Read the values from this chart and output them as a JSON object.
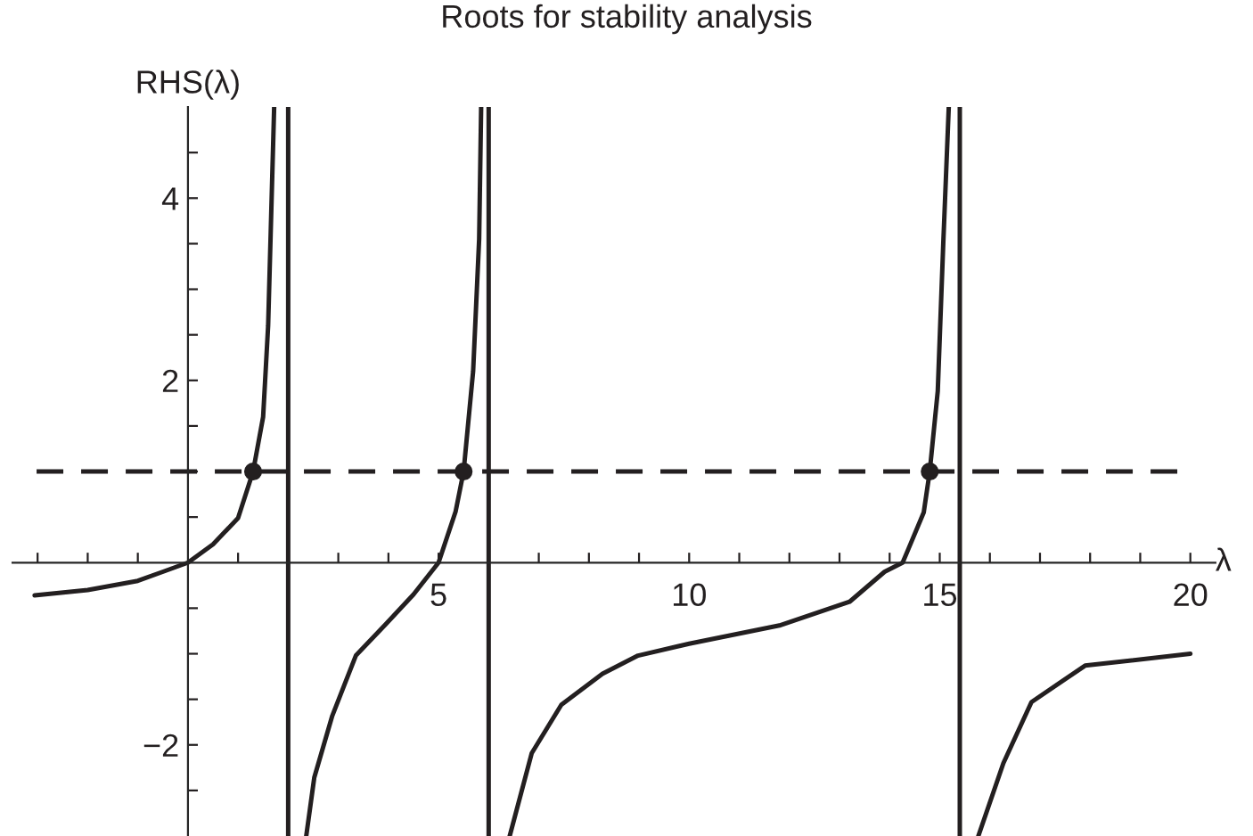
{
  "chart_data": {
    "type": "line",
    "title": "Roots for stability analysis",
    "xlabel": "λ",
    "ylabel": "RHS(λ)",
    "xlim": [
      -3.5,
      20.5
    ],
    "ylim": [
      -3,
      5
    ],
    "xticks": [
      {
        "value": -3,
        "label": null
      },
      {
        "value": -2,
        "label": null
      },
      {
        "value": -1,
        "label": null
      },
      {
        "value": 1,
        "label": null
      },
      {
        "value": 2,
        "label": null
      },
      {
        "value": 3,
        "label": null
      },
      {
        "value": 4,
        "label": null
      },
      5,
      {
        "value": 6,
        "label": null
      },
      {
        "value": 7,
        "label": null
      },
      {
        "value": 8,
        "label": null
      },
      {
        "value": 9,
        "label": null
      },
      10,
      {
        "value": 11,
        "label": null
      },
      {
        "value": 12,
        "label": null
      },
      {
        "value": 13,
        "label": null
      },
      {
        "value": 14,
        "label": null
      },
      15,
      {
        "value": 16,
        "label": null
      },
      {
        "value": 17,
        "label": null
      },
      {
        "value": 18,
        "label": null
      },
      {
        "value": 19,
        "label": null
      },
      20
    ],
    "yticks": [
      {
        "value": -2.5,
        "label": null
      },
      {
        "value": -2,
        "label": "−2"
      },
      {
        "value": -1.5,
        "label": null
      },
      {
        "value": -1,
        "label": null
      },
      {
        "value": -0.5,
        "label": null
      },
      {
        "value": 0.5,
        "label": null
      },
      {
        "value": 1,
        "label": null
      },
      {
        "value": 1.5,
        "label": null
      },
      2,
      {
        "value": 2.5,
        "label": null
      },
      {
        "value": 3,
        "label": null
      },
      {
        "value": 3.5,
        "label": null
      },
      4,
      {
        "value": 4.5,
        "label": null
      }
    ],
    "grid": false,
    "legend": false,
    "series": [
      {
        "type": "line",
        "color": "#231f20",
        "line_style": "solid",
        "x": [
          -3.06,
          -2,
          -1,
          -0.5,
          0,
          0.5,
          1,
          1.3,
          1.5,
          1.6,
          1.65,
          1.72
        ],
        "values": [
          -0.36,
          -0.3,
          -0.2,
          -0.1,
          0,
          0.2,
          0.49,
          1,
          1.6,
          2.6,
          3.6,
          5
        ]
      },
      {
        "type": "line",
        "color": "#231f20",
        "line_style": "solid",
        "x": [
          2.36,
          2.52,
          2.88,
          3.35,
          3.94,
          4.5,
          5.0,
          5.34,
          5.5,
          5.69,
          5.81,
          5.85
        ],
        "values": [
          -3,
          -2.36,
          -1.68,
          -1.02,
          -0.68,
          -0.35,
          0,
          0.56,
          1,
          2.1,
          3.55,
          5
        ]
      },
      {
        "type": "line",
        "color": "#231f20",
        "line_style": "solid",
        "x": [
          6.42,
          6.86,
          7.45,
          8.27,
          8.98,
          10,
          11.8,
          13.2,
          13.9,
          14.26,
          14.68,
          14.8,
          14.96,
          15.07,
          15.18
        ],
        "values": [
          -3,
          -2.09,
          -1.56,
          -1.22,
          -1.02,
          -0.89,
          -0.69,
          -0.43,
          -0.1,
          0,
          0.55,
          1,
          1.88,
          3.5,
          5
        ]
      },
      {
        "type": "line",
        "color": "#231f20",
        "line_style": "solid",
        "x": [
          15.77,
          16.27,
          16.83,
          17.9,
          20
        ],
        "values": [
          -3,
          -2.2,
          -1.53,
          -1.13,
          -1.0
        ]
      },
      {
        "type": "scatter",
        "color": "#231f20",
        "marker": "circle",
        "x": [
          1.3,
          5.5,
          14.8
        ],
        "values": [
          1,
          1,
          1
        ]
      }
    ],
    "ref_lines": [
      {
        "axis": "y",
        "value": 1,
        "color": "#231f20",
        "line_style": "dashed"
      },
      {
        "axis": "x",
        "value": 2,
        "color": "#231f20",
        "line_style": "solid"
      },
      {
        "axis": "x",
        "value": 6,
        "color": "#231f20",
        "line_style": "solid"
      },
      {
        "axis": "x",
        "value": 15.4,
        "color": "#231f20",
        "line_style": "solid"
      }
    ]
  }
}
